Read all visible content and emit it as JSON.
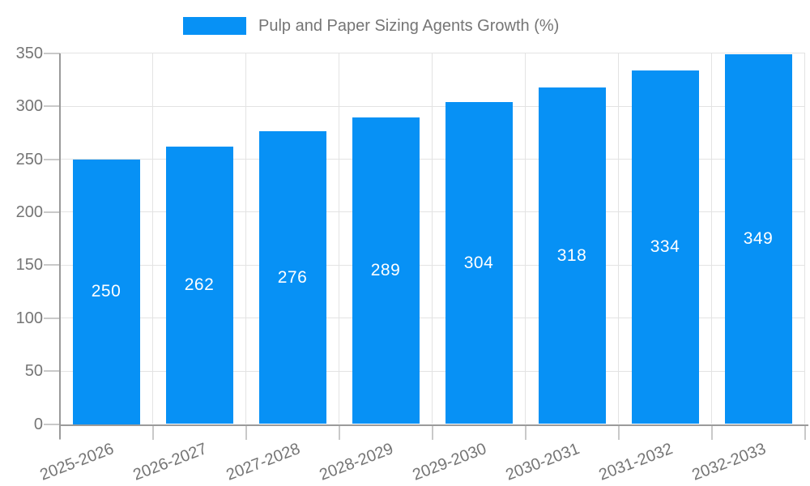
{
  "legend": {
    "label": "Pulp and Paper Sizing Agents Growth (%)"
  },
  "chart_data": {
    "type": "bar",
    "title": "Pulp and Paper Sizing Agents Growth (%)",
    "categories": [
      "2025-2026",
      "2026-2027",
      "2027-2028",
      "2028-2029",
      "2029-2030",
      "2030-2031",
      "2031-2032",
      "2032-2033"
    ],
    "values": [
      250,
      262,
      276,
      289,
      304,
      318,
      334,
      349
    ],
    "bar_labels": [
      "250",
      "262",
      "276",
      "289",
      "304",
      "318",
      "334",
      "349"
    ],
    "xlabel": "",
    "ylabel": "",
    "ylim": [
      0,
      350
    ],
    "yticks": [
      0,
      50,
      100,
      150,
      200,
      250,
      300,
      350
    ],
    "grid": true,
    "legend_position": "top",
    "x_label_rotation_deg": -21
  },
  "colors": {
    "bar": "#0791f5",
    "bar_label_text": "#ffffff",
    "legend_text": "#757575",
    "axis_text": "#757575",
    "grid_line": "#e3e3e3",
    "axis_line": "#9a9a9a",
    "tick": "#c9c9c9",
    "background": "#ffffff"
  }
}
